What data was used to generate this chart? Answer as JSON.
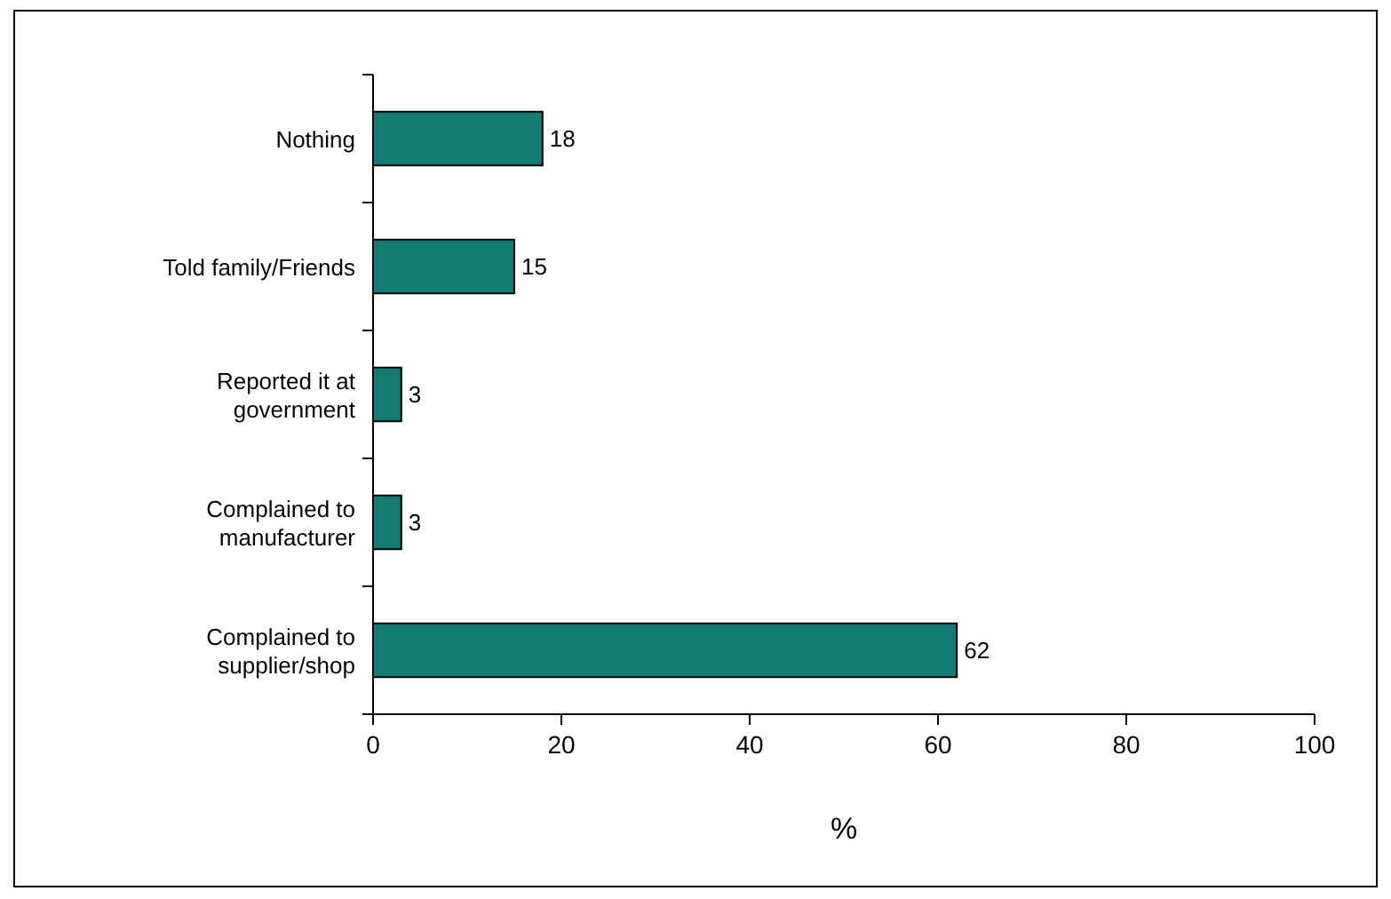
{
  "chart_data": {
    "type": "bar",
    "orientation": "horizontal",
    "categories": [
      "Nothing",
      "Told family/Friends",
      "Reported it at government",
      "Complained to manufacturer",
      "Complained to supplier/shop"
    ],
    "values": [
      18,
      15,
      3,
      3,
      62
    ],
    "color": "#137a76",
    "xlabel": "%",
    "xlim": [
      0,
      100
    ],
    "xticks": [
      0,
      20,
      40,
      60,
      80,
      100
    ],
    "data_labels": true,
    "grid": false
  }
}
